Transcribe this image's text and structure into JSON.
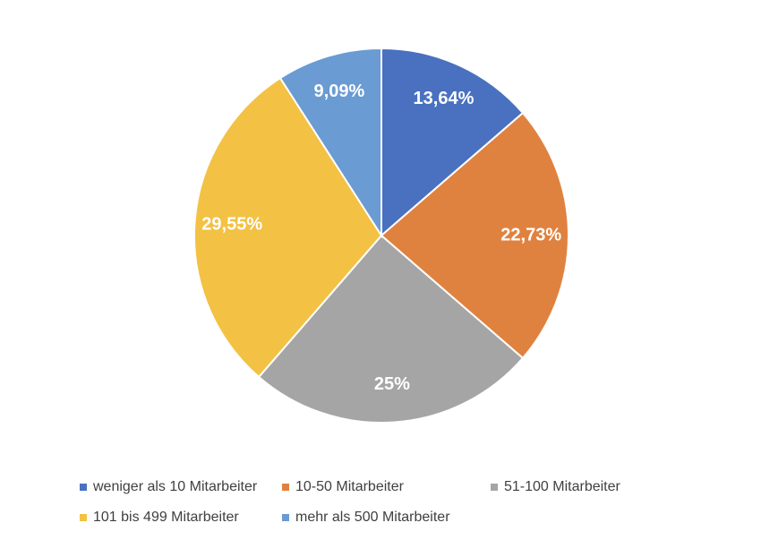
{
  "chart_data": {
    "type": "pie",
    "categories": [
      "weniger als 10 Mitarbeiter",
      "10-50 Mitarbeiter",
      "51-100 Mitarbeiter",
      "101 bis 499 Mitarbeiter",
      "mehr als 500 Mitarbeiter"
    ],
    "values": [
      13.64,
      22.73,
      25,
      29.55,
      9.09
    ],
    "value_labels": [
      "13,64%",
      "22,73%",
      "25%",
      "29,55%",
      "9,09%"
    ],
    "colors": [
      "#4a71c0",
      "#e0823f",
      "#a5a5a5",
      "#f3c143",
      "#6a9bd3"
    ],
    "legend": "bottom"
  }
}
